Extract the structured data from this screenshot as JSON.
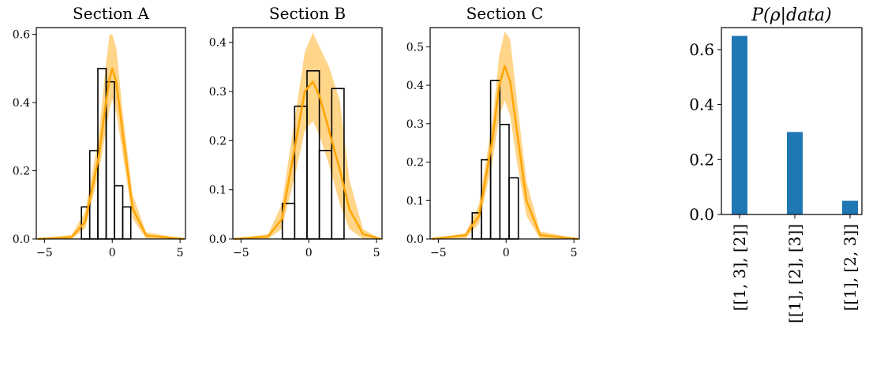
{
  "chart_data": [
    {
      "type": "histogram",
      "title": "Section A",
      "xlim": [
        -5.6,
        5.4
      ],
      "ylim": [
        0,
        0.62
      ],
      "xticks": [
        -5,
        0,
        5
      ],
      "xtick_labels": [
        "−5",
        "0",
        "5"
      ],
      "yticks": [
        0,
        0.2,
        0.4,
        0.6
      ],
      "ytick_labels": [
        "0.0",
        "0.2",
        "0.4",
        "0.6"
      ],
      "bin_edges": [
        -2.27,
        -1.66,
        -1.06,
        -0.45,
        0.16,
        0.77,
        1.37
      ],
      "counts": [
        0.094,
        0.259,
        0.5,
        0.461,
        0.156,
        0.094
      ],
      "density_mean": {
        "x": [
          -5.5,
          -3.0,
          -2.0,
          -1.0,
          -0.5,
          -0.2,
          0.0,
          0.3,
          0.8,
          1.5,
          2.5,
          5.3
        ],
        "y": [
          0.0,
          0.005,
          0.05,
          0.24,
          0.39,
          0.47,
          0.5,
          0.46,
          0.3,
          0.09,
          0.01,
          0.0
        ]
      },
      "band_upper": {
        "x": [
          -5.5,
          -3.0,
          -2.0,
          -1.0,
          -0.5,
          -0.2,
          0.0,
          0.3,
          0.8,
          1.5,
          2.5,
          5.3
        ],
        "y": [
          0.0,
          0.012,
          0.08,
          0.3,
          0.5,
          0.6,
          0.6,
          0.56,
          0.36,
          0.13,
          0.02,
          0.0
        ]
      },
      "band_lower": {
        "x": [
          -5.5,
          -3.0,
          -2.0,
          -1.0,
          -0.5,
          -0.2,
          0.0,
          0.3,
          0.8,
          1.5,
          2.5,
          5.3
        ],
        "y": [
          0.0,
          0.0,
          0.03,
          0.19,
          0.31,
          0.38,
          0.41,
          0.37,
          0.24,
          0.06,
          0.0,
          0.0
        ]
      }
    },
    {
      "type": "histogram",
      "title": "Section B",
      "xlim": [
        -5.6,
        5.4
      ],
      "ylim": [
        0,
        0.43
      ],
      "xticks": [
        -5,
        0,
        5
      ],
      "xtick_labels": [
        "−5",
        "0",
        "5"
      ],
      "yticks": [
        0,
        0.1,
        0.2,
        0.3,
        0.4
      ],
      "ytick_labels": [
        "0.0",
        "0.1",
        "0.2",
        "0.3",
        "0.4"
      ],
      "bin_edges": [
        -1.95,
        -1.04,
        -0.13,
        0.78,
        1.69,
        2.6
      ],
      "counts": [
        0.072,
        0.27,
        0.342,
        0.18,
        0.306
      ],
      "density_mean": {
        "x": [
          -5.5,
          -3.0,
          -2.0,
          -1.0,
          -0.3,
          0.3,
          0.8,
          1.5,
          2.3,
          3.0,
          4.0,
          5.3
        ],
        "y": [
          0.0,
          0.005,
          0.04,
          0.19,
          0.3,
          0.32,
          0.29,
          0.22,
          0.14,
          0.06,
          0.01,
          0.0
        ]
      },
      "band_upper": {
        "x": [
          -5.5,
          -3.0,
          -2.0,
          -1.0,
          -0.3,
          0.3,
          0.8,
          1.5,
          2.3,
          3.0,
          4.0,
          5.3
        ],
        "y": [
          0.0,
          0.01,
          0.07,
          0.25,
          0.38,
          0.42,
          0.39,
          0.35,
          0.28,
          0.12,
          0.02,
          0.0
        ]
      },
      "band_lower": {
        "x": [
          -5.5,
          -3.0,
          -2.0,
          -1.0,
          -0.3,
          0.3,
          0.8,
          1.5,
          2.3,
          3.0,
          4.0,
          5.3
        ],
        "y": [
          0.0,
          0.0,
          0.02,
          0.13,
          0.22,
          0.24,
          0.21,
          0.15,
          0.07,
          0.02,
          0.0,
          0.0
        ]
      }
    },
    {
      "type": "histogram",
      "title": "Section C",
      "xlim": [
        -5.6,
        5.4
      ],
      "ylim": [
        0,
        0.55
      ],
      "xticks": [
        -5,
        0,
        5
      ],
      "xtick_labels": [
        "−5",
        "0",
        "5"
      ],
      "yticks": [
        0,
        0.1,
        0.2,
        0.3,
        0.4,
        0.5
      ],
      "ytick_labels": [
        "0.0",
        "0.1",
        "0.2",
        "0.3",
        "0.4",
        "0.5"
      ],
      "bin_edges": [
        -2.5,
        -1.82,
        -1.14,
        -0.46,
        0.22,
        0.9,
        1.58
      ],
      "counts": [
        0.068,
        0.206,
        0.412,
        0.298,
        0.159,
        0.0
      ],
      "density_mean": {
        "x": [
          -5.5,
          -3.0,
          -2.0,
          -1.0,
          -0.5,
          -0.1,
          0.3,
          0.8,
          1.5,
          2.5,
          5.3
        ],
        "y": [
          0.0,
          0.01,
          0.06,
          0.26,
          0.4,
          0.45,
          0.41,
          0.28,
          0.1,
          0.01,
          0.0
        ]
      },
      "band_upper": {
        "x": [
          -5.5,
          -3.0,
          -2.0,
          -1.0,
          -0.5,
          -0.1,
          0.3,
          0.8,
          1.5,
          2.5,
          5.3
        ],
        "y": [
          0.0,
          0.015,
          0.09,
          0.31,
          0.48,
          0.54,
          0.52,
          0.36,
          0.15,
          0.02,
          0.0
        ]
      },
      "band_lower": {
        "x": [
          -5.5,
          -3.0,
          -2.0,
          -1.0,
          -0.5,
          -0.1,
          0.3,
          0.8,
          1.5,
          2.5,
          5.3
        ],
        "y": [
          0.0,
          0.0,
          0.04,
          0.2,
          0.32,
          0.36,
          0.32,
          0.2,
          0.06,
          0.0,
          0.0
        ]
      }
    },
    {
      "type": "bar",
      "title": "P(ρ|data)",
      "ylim": [
        0,
        0.68
      ],
      "yticks": [
        0,
        0.2,
        0.4,
        0.6
      ],
      "ytick_labels": [
        "0.0",
        "0.2",
        "0.4",
        "0.6"
      ],
      "categories": [
        "[[1, 3], [2]]",
        "[[1], [2], [3]]",
        "[[1], [2, 3]]"
      ],
      "values": [
        0.65,
        0.3,
        0.05
      ]
    }
  ],
  "colors": {
    "curve": "#ffa500",
    "band": "#ffd58a",
    "hist_edge": "#000000",
    "bar": "#1f77b4",
    "axis": "#000000"
  }
}
